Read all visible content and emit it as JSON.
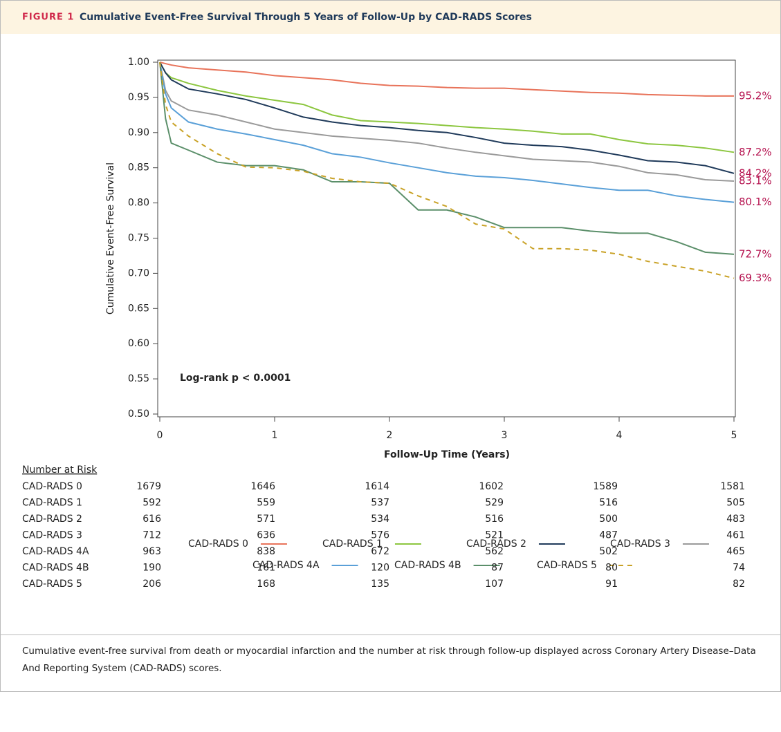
{
  "figure_label": "FIGURE 1",
  "figure_title": "Cumulative Event-Free Survival Through 5 Years of Follow-Up by CAD-RADS Scores",
  "chart_data": {
    "type": "line",
    "xlabel": "Follow-Up Time (Years)",
    "ylabel": "Cumulative Event-Free Survival",
    "annotation": "Log-rank p < 0.0001",
    "legend": "bottom",
    "x": [
      0,
      0.05,
      0.1,
      0.25,
      0.5,
      0.75,
      1,
      1.25,
      1.5,
      1.75,
      2,
      2.25,
      2.5,
      2.75,
      3,
      3.25,
      3.5,
      3.75,
      4,
      4.25,
      4.5,
      4.75,
      5
    ],
    "xlim": [
      0,
      5
    ],
    "xticks": [
      0,
      1,
      2,
      3,
      4,
      5
    ],
    "ylim": [
      0.5,
      1.0
    ],
    "yticks": [
      {
        "value": 0.5,
        "label": "0.50"
      },
      {
        "value": 0.55,
        "label": "0.55"
      },
      {
        "value": 0.6,
        "label": "0.60"
      },
      {
        "value": 0.65,
        "label": "0.65"
      },
      {
        "value": 0.7,
        "label": "0.70"
      },
      {
        "value": 0.75,
        "label": "0.75"
      },
      {
        "value": 0.8,
        "label": "0.80"
      },
      {
        "value": 0.85,
        "label": "0.85"
      },
      {
        "value": 0.9,
        "label": "0.90"
      },
      {
        "value": 0.95,
        "label": "0.95"
      },
      {
        "value": 1.0,
        "label": "1.00"
      }
    ],
    "series": [
      {
        "name": "CAD-RADS 0",
        "color": "#e8735a",
        "dashed": false,
        "end_label": "95.2%",
        "values": [
          1.0,
          0.998,
          0.996,
          0.992,
          0.989,
          0.986,
          0.981,
          0.978,
          0.975,
          0.97,
          0.967,
          0.966,
          0.964,
          0.963,
          0.963,
          0.961,
          0.959,
          0.957,
          0.956,
          0.954,
          0.953,
          0.952,
          0.952
        ]
      },
      {
        "name": "CAD-RADS 1",
        "color": "#8cc63f",
        "dashed": false,
        "end_label": "87.2%",
        "values": [
          1.0,
          0.985,
          0.978,
          0.97,
          0.96,
          0.952,
          0.946,
          0.94,
          0.925,
          0.917,
          0.915,
          0.913,
          0.91,
          0.907,
          0.905,
          0.902,
          0.898,
          0.898,
          0.89,
          0.884,
          0.882,
          0.878,
          0.872
        ]
      },
      {
        "name": "CAD-RADS 2",
        "color": "#1f3a5a",
        "dashed": false,
        "end_label": "84.2%",
        "values": [
          1.0,
          0.985,
          0.975,
          0.962,
          0.955,
          0.947,
          0.935,
          0.922,
          0.915,
          0.91,
          0.907,
          0.903,
          0.9,
          0.893,
          0.885,
          0.882,
          0.88,
          0.875,
          0.868,
          0.86,
          0.858,
          0.853,
          0.842
        ]
      },
      {
        "name": "CAD-RADS 3",
        "color": "#9a9a9a",
        "dashed": false,
        "end_label": "83.1%",
        "values": [
          1.0,
          0.96,
          0.945,
          0.932,
          0.925,
          0.915,
          0.905,
          0.9,
          0.895,
          0.892,
          0.889,
          0.885,
          0.878,
          0.872,
          0.867,
          0.862,
          0.86,
          0.858,
          0.852,
          0.843,
          0.84,
          0.833,
          0.831
        ]
      },
      {
        "name": "CAD-RADS 4A",
        "color": "#5aa0d8",
        "dashed": false,
        "end_label": "80.1%",
        "values": [
          1.0,
          0.955,
          0.935,
          0.915,
          0.905,
          0.898,
          0.89,
          0.882,
          0.87,
          0.865,
          0.857,
          0.85,
          0.843,
          0.838,
          0.836,
          0.832,
          0.827,
          0.822,
          0.818,
          0.818,
          0.81,
          0.805,
          0.801
        ]
      },
      {
        "name": "CAD-RADS 4B",
        "color": "#5b8f6a",
        "dashed": false,
        "end_label": "72.7%",
        "values": [
          1.0,
          0.92,
          0.885,
          0.875,
          0.858,
          0.853,
          0.853,
          0.847,
          0.83,
          0.83,
          0.828,
          0.79,
          0.79,
          0.78,
          0.765,
          0.765,
          0.765,
          0.76,
          0.757,
          0.757,
          0.745,
          0.73,
          0.727
        ]
      },
      {
        "name": "CAD-RADS 5",
        "color": "#c9a227",
        "dashed": true,
        "end_label": "69.3%",
        "values": [
          1.0,
          0.94,
          0.915,
          0.895,
          0.87,
          0.851,
          0.85,
          0.845,
          0.835,
          0.83,
          0.828,
          0.81,
          0.795,
          0.77,
          0.763,
          0.735,
          0.735,
          0.733,
          0.727,
          0.717,
          0.71,
          0.703,
          0.693
        ]
      }
    ]
  },
  "risk_table": {
    "title": "Number at Risk",
    "rows": [
      {
        "label": "CAD-RADS 0",
        "values": [
          1679,
          1646,
          1614,
          1602,
          1589,
          1581
        ]
      },
      {
        "label": "CAD-RADS 1",
        "values": [
          592,
          559,
          537,
          529,
          516,
          505
        ]
      },
      {
        "label": "CAD-RADS 2",
        "values": [
          616,
          571,
          534,
          516,
          500,
          483
        ]
      },
      {
        "label": "CAD-RADS 3",
        "values": [
          712,
          636,
          576,
          521,
          487,
          461
        ]
      },
      {
        "label": "CAD-RADS 4A",
        "values": [
          963,
          838,
          672,
          562,
          502,
          465
        ]
      },
      {
        "label": "CAD-RADS 4B",
        "values": [
          190,
          161,
          120,
          87,
          80,
          74
        ]
      },
      {
        "label": "CAD-RADS 5",
        "values": [
          206,
          168,
          135,
          107,
          91,
          82
        ]
      }
    ]
  },
  "caption": "Cumulative event-free survival from death or myocardial infarction and the number at risk through follow-up displayed across Coronary Artery Disease–Data And Reporting System (CAD-RADS) scores."
}
